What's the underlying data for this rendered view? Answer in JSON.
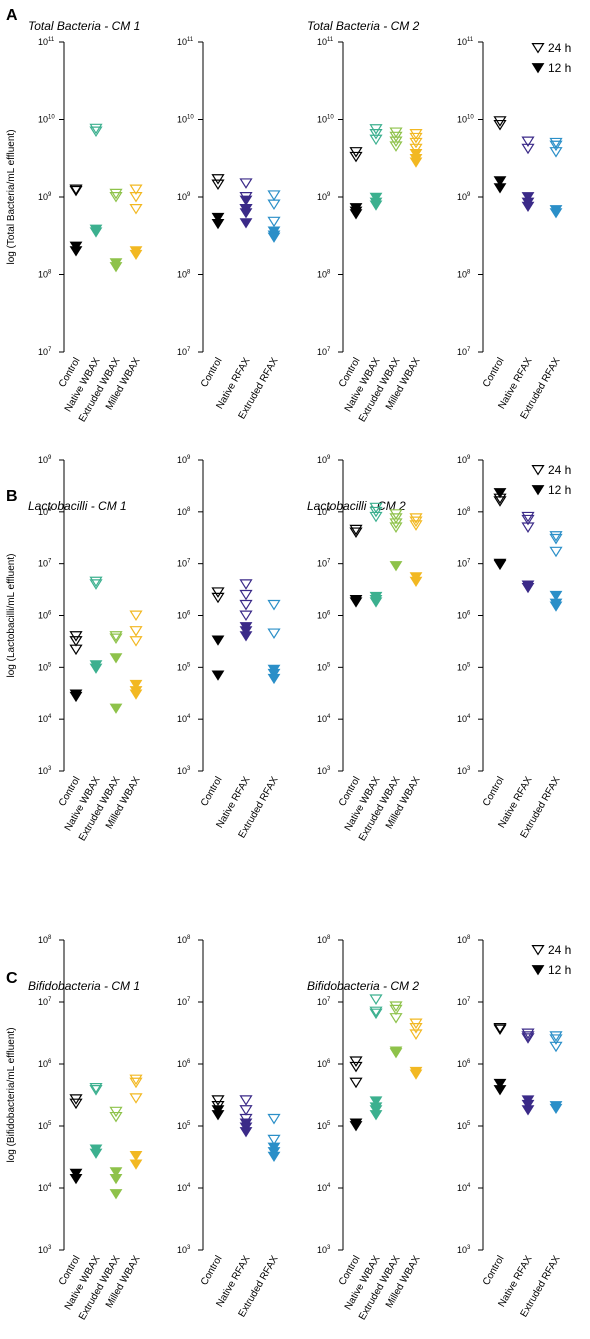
{
  "legend": [
    {
      "label": "24 h",
      "style": "open"
    },
    {
      "label": "12 h",
      "style": "filled"
    }
  ],
  "colors": {
    "Control": "#000000",
    "Native WBAX": "#3cb08f",
    "Extruded WBAX": "#8ec24a",
    "Milled WBAX": "#f2b822",
    "Native RFAX": "#3b2a88",
    "Extruded RFAX": "#2b8fc8"
  },
  "chart_data": [
    {
      "letter": "A",
      "ylabel": "log (Total Bacteria/mL effluent)",
      "ylim_exp": [
        7,
        11
      ],
      "titles": [
        "Total Bacteria - CM 1",
        "",
        "Total Bacteria - CM 2",
        ""
      ],
      "subplots": [
        {
          "categories": [
            "Control",
            "Native WBAX",
            "Extruded WBAX",
            "Milled WBAX"
          ],
          "series_24h": [
            [
              1200000000.0,
              1250000000.0
            ],
            [
              7000000000.0,
              7600000000.0
            ],
            [
              1000000000.0,
              1100000000.0
            ],
            [
              1250000000.0,
              1000000000.0,
              700000000.0
            ]
          ],
          "series_12h": [
            [
              230000000.0,
              200000000.0
            ],
            [
              350000000.0,
              380000000.0
            ],
            [
              140000000.0,
              125000000.0
            ],
            [
              200000000.0,
              180000000.0
            ]
          ]
        },
        {
          "categories": [
            "Control",
            "Native RFAX",
            "Extruded RFAX"
          ],
          "series_24h": [
            [
              1700000000.0,
              1450000000.0
            ],
            [
              1500000000.0,
              1000000000.0,
              700000000.0
            ],
            [
              1050000000.0,
              800000000.0,
              480000000.0
            ]
          ],
          "series_12h": [
            [
              540000000.0,
              450000000.0
            ],
            [
              900000000.0,
              700000000.0,
              620000000.0,
              460000000.0
            ],
            [
              360000000.0,
              320000000.0,
              300000000.0
            ]
          ]
        },
        {
          "categories": [
            "Control",
            "Native WBAX",
            "Extruded WBAX",
            "Milled WBAX"
          ],
          "series_24h": [
            [
              3800000000.0,
              3300000000.0
            ],
            [
              7500000000.0,
              6500000000.0,
              5500000000.0
            ],
            [
              6800000000.0,
              6000000000.0,
              5200000000.0,
              4500000000.0
            ],
            [
              6500000000.0,
              5800000000.0,
              5000000000.0,
              4200000000.0
            ]
          ],
          "series_12h": [
            [
              720000000.0,
              650000000.0,
              600000000.0
            ],
            [
              980000000.0,
              850000000.0,
              780000000.0
            ],
            [],
            [
              3600000000.0,
              3100000000.0,
              2800000000.0
            ]
          ]
        },
        {
          "categories": [
            "Control",
            "Native RFAX",
            "Extruded RFAX"
          ],
          "series_24h": [
            [
              9500000000.0,
              8500000000.0
            ],
            [
              5200000000.0,
              4200000000.0
            ],
            [
              5000000000.0,
              4600000000.0,
              3800000000.0
            ]
          ],
          "series_12h": [
            [
              1600000000.0,
              1300000000.0
            ],
            [
              1000000000.0,
              850000000.0,
              750000000.0
            ],
            [
              680000000.0,
              620000000.0
            ]
          ]
        }
      ]
    },
    {
      "letter": "B",
      "ylabel": "log (Lactobacilli/mL effluent)",
      "ylim_exp": [
        3,
        9
      ],
      "titles": [
        "Lactobacilli - CM 1",
        "",
        "Lactobacilli - CM 2",
        ""
      ],
      "subplots": [
        {
          "categories": [
            "Control",
            "Native WBAX",
            "Extruded WBAX",
            "Milled WBAX"
          ],
          "series_24h": [
            [
              400000.0,
              320000.0,
              220000.0
            ],
            [
              4500000.0,
              4000000.0
            ],
            [
              400000.0,
              360000.0
            ],
            [
              1000000.0,
              500000.0,
              320000.0
            ]
          ],
          "series_12h": [
            [
              30000.0,
              27000.0
            ],
            [
              110000.0,
              95000.0
            ],
            [
              150000.0,
              16000.0
            ],
            [
              46000.0,
              35000.0,
              30000.0
            ]
          ]
        },
        {
          "categories": [
            "Control",
            "Native RFAX",
            "Extruded RFAX"
          ],
          "series_24h": [
            [
              2800000.0,
              2200000.0
            ],
            [
              4000000.0,
              2500000.0,
              1600000.0,
              1000000.0
            ],
            [
              1600000.0,
              450000.0
            ]
          ],
          "series_12h": [
            [
              330000.0,
              70000.0
            ],
            [
              600000.0,
              500000.0,
              400000.0
            ],
            [
              90000.0,
              75000.0,
              60000.0
            ]
          ]
        },
        {
          "categories": [
            "Control",
            "Native WBAX",
            "Extruded WBAX",
            "Milled WBAX"
          ],
          "series_24h": [
            [
              45000000.0,
              40000000.0
            ],
            [
              120000000.0,
              100000000.0,
              80000000.0
            ],
            [
              90000000.0,
              75000000.0,
              60000000.0,
              50000000.0
            ],
            [
              75000000.0,
              65000000.0,
              55000000.0
            ]
          ],
          "series_12h": [
            [
              2000000.0,
              1800000.0
            ],
            [
              2300000.0,
              2000000.0,
              1800000.0
            ],
            [
              9000000.0
            ],
            [
              5500000.0,
              4500000.0
            ]
          ]
        },
        {
          "categories": [
            "Control",
            "Native RFAX",
            "Extruded RFAX"
          ],
          "series_24h": [
            [
              180000000.0,
              160000000.0
            ],
            [
              80000000.0,
              70000000.0,
              50000000.0
            ],
            [
              34000000.0,
              30000000.0,
              17000000.0
            ]
          ],
          "series_12h": [
            [
              230000000.0,
              10000000.0,
              9500000.0
            ],
            [
              3800000.0,
              3400000.0
            ],
            [
              2400000.0,
              1700000.0,
              1500000.0
            ]
          ]
        }
      ]
    },
    {
      "letter": "C",
      "ylabel": "log (Bifidobacteria/mL effluent)",
      "ylim_exp": [
        3,
        8
      ],
      "titles": [
        "Bifidobacteria - CM 1",
        "",
        "Bifidobacteria - CM 2",
        ""
      ],
      "subplots": [
        {
          "categories": [
            "Control",
            "Native WBAX",
            "Extruded WBAX",
            "Milled WBAX"
          ],
          "series_24h": [
            [
              270000.0,
              230000.0
            ],
            [
              410000.0,
              380000.0
            ],
            [
              170000.0,
              140000.0
            ],
            [
              560000.0,
              500000.0,
              280000.0
            ]
          ],
          "series_12h": [
            [
              17000.0,
              14000.0
            ],
            [
              42000.0,
              36000.0
            ],
            [
              18000.0,
              14000.0,
              8000.0
            ],
            [
              33000.0,
              24000.0
            ]
          ]
        },
        {
          "categories": [
            "Control",
            "Native RFAX",
            "Extruded RFAX"
          ],
          "series_24h": [
            [
              260000.0,
              210000.0
            ],
            [
              260000.0,
              180000.0,
              130000.0
            ],
            [
              130000.0,
              60000.0
            ]
          ],
          "series_12h": [
            [
              180000.0,
              150000.0
            ],
            [
              110000.0,
              95000.0,
              80000.0
            ],
            [
              45000.0,
              38000.0,
              32000.0
            ]
          ]
        },
        {
          "categories": [
            "Control",
            "Native WBAX",
            "Extruded WBAX",
            "Milled WBAX"
          ],
          "series_24h": [
            [
              1100000.0,
              900000.0,
              500000.0
            ],
            [
              11000000.0,
              7000000.0,
              6500000.0
            ],
            [
              8500000.0,
              7500000.0,
              5500000.0
            ],
            [
              4500000.0,
              3800000.0,
              3000000.0
            ]
          ],
          "series_12h": [
            [
              110000.0,
              100000.0
            ],
            [
              250000.0,
              200000.0,
              180000.0,
              150000.0
            ],
            [
              1600000.0,
              1500000.0
            ],
            [
              750000.0,
              680000.0
            ]
          ]
        },
        {
          "categories": [
            "Control",
            "Native RFAX",
            "Extruded RFAX"
          ],
          "series_24h": [
            [
              3800000.0,
              3600000.0
            ],
            [
              3100000.0,
              2800000.0,
              2600000.0
            ],
            [
              2800000.0,
              2500000.0,
              1900000.0
            ]
          ],
          "series_12h": [
            [
              480000.0,
              380000.0
            ],
            [
              260000.0,
              220000.0,
              180000.0
            ],
            [
              210000.0,
              190000.0
            ]
          ]
        }
      ]
    }
  ]
}
